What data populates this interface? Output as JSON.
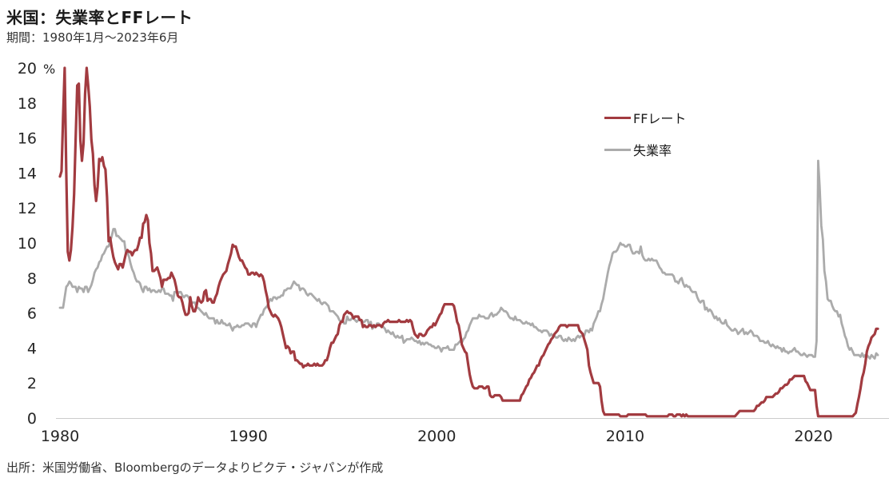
{
  "title": "米国：失業率とFFレート",
  "subtitle": "期間：1980年1月～2023年6月",
  "source": "出所：米国労働省、Bloombergのデータよりピクテ・ジャパンが作成",
  "colors": {
    "ff_rate": "#A23B40",
    "unemployment": "#ABABAB",
    "axis_line": "#CCCCCC",
    "text": "#262626"
  },
  "legend": [
    {
      "label": "FFレート",
      "series_key": "ff_rate"
    },
    {
      "label": "失業率",
      "series_key": "unemployment"
    }
  ],
  "chart_data": {
    "type": "line",
    "x_start": "1980-01",
    "x_end": "2023-06",
    "frequency": "monthly",
    "y_unit": "%",
    "ylim": [
      0,
      20
    ],
    "y_ticks": [
      0,
      2,
      4,
      6,
      8,
      10,
      12,
      14,
      16,
      18,
      20
    ],
    "x_ticks": [
      1980,
      1990,
      2000,
      2010,
      2020
    ],
    "grid": false,
    "legend_position": "inside-top-right",
    "series": [
      {
        "name": "FFレート",
        "color": "#A23B40",
        "values": [
          13.8,
          14.1,
          17.2,
          20.0,
          14.0,
          9.5,
          9.0,
          9.6,
          10.9,
          12.8,
          15.9,
          19.0,
          19.1,
          15.9,
          14.7,
          15.7,
          18.5,
          20.0,
          19.0,
          17.8,
          15.9,
          15.1,
          13.3,
          12.4,
          13.2,
          14.8,
          14.7,
          14.9,
          14.4,
          14.2,
          12.6,
          10.1,
          10.3,
          9.7,
          9.2,
          8.9,
          8.7,
          8.5,
          8.8,
          8.8,
          8.6,
          9.0,
          9.4,
          9.6,
          9.5,
          9.5,
          9.3,
          9.5,
          9.6,
          9.6,
          9.9,
          10.3,
          10.3,
          11.1,
          11.2,
          11.6,
          11.3,
          10.0,
          9.4,
          8.4,
          8.4,
          8.5,
          8.6,
          8.3,
          8.0,
          7.5,
          7.9,
          7.9,
          7.9,
          8.0,
          8.0,
          8.3,
          8.1,
          7.9,
          7.5,
          7.0,
          6.9,
          6.9,
          6.6,
          6.2,
          5.9,
          5.9,
          6.0,
          6.9,
          6.4,
          6.1,
          6.1,
          6.4,
          6.9,
          6.7,
          6.6,
          6.7,
          7.2,
          7.3,
          6.7,
          6.8,
          6.8,
          6.6,
          6.6,
          6.9,
          7.1,
          7.5,
          7.8,
          8.0,
          8.2,
          8.3,
          8.4,
          8.8,
          9.1,
          9.4,
          9.9,
          9.8,
          9.8,
          9.5,
          9.2,
          9.0,
          9.0,
          8.8,
          8.6,
          8.5,
          8.2,
          8.2,
          8.3,
          8.3,
          8.2,
          8.3,
          8.2,
          8.1,
          8.2,
          8.1,
          7.8,
          7.3,
          6.9,
          6.3,
          6.1,
          5.9,
          5.8,
          5.9,
          5.8,
          5.7,
          5.5,
          5.2,
          4.8,
          4.4,
          4.0,
          4.1,
          4.0,
          3.7,
          3.8,
          3.8,
          3.3,
          3.3,
          3.2,
          3.1,
          3.1,
          2.9,
          3.0,
          3.0,
          3.1,
          3.0,
          3.0,
          3.0,
          3.1,
          3.0,
          3.1,
          3.0,
          3.0,
          3.0,
          3.1,
          3.3,
          3.3,
          3.6,
          4.0,
          4.3,
          4.3,
          4.5,
          4.7,
          4.8,
          5.3,
          5.5,
          5.5,
          5.9,
          6.0,
          6.1,
          6.0,
          6.0,
          5.9,
          5.7,
          5.8,
          5.8,
          5.8,
          5.6,
          5.6,
          5.2,
          5.3,
          5.2,
          5.2,
          5.3,
          5.3,
          5.2,
          5.3,
          5.2,
          5.3,
          5.3,
          5.3,
          5.2,
          5.4,
          5.5,
          5.5,
          5.6,
          5.5,
          5.5,
          5.5,
          5.5,
          5.5,
          5.5,
          5.6,
          5.5,
          5.5,
          5.5,
          5.5,
          5.6,
          5.5,
          5.6,
          5.5,
          5.1,
          4.8,
          4.7,
          4.6,
          4.8,
          4.8,
          4.7,
          4.7,
          4.8,
          5.0,
          5.1,
          5.2,
          5.2,
          5.4,
          5.3,
          5.5,
          5.7,
          5.9,
          6.0,
          6.3,
          6.5,
          6.5,
          6.5,
          6.5,
          6.5,
          6.5,
          6.4,
          6.0,
          5.5,
          5.3,
          4.8,
          4.2,
          4.0,
          3.8,
          3.7,
          3.1,
          2.5,
          2.1,
          1.8,
          1.7,
          1.7,
          1.7,
          1.8,
          1.8,
          1.8,
          1.7,
          1.7,
          1.8,
          1.8,
          1.3,
          1.2,
          1.2,
          1.3,
          1.3,
          1.3,
          1.3,
          1.2,
          1.0,
          1.0,
          1.0,
          1.0,
          1.0,
          1.0,
          1.0,
          1.0,
          1.0,
          1.0,
          1.0,
          1.0,
          1.3,
          1.4,
          1.6,
          1.8,
          1.9,
          2.2,
          2.3,
          2.5,
          2.6,
          2.8,
          3.0,
          3.0,
          3.3,
          3.5,
          3.6,
          3.8,
          4.0,
          4.2,
          4.3,
          4.5,
          4.6,
          4.8,
          4.9,
          5.0,
          5.2,
          5.3,
          5.3,
          5.3,
          5.3,
          5.2,
          5.3,
          5.3,
          5.3,
          5.3,
          5.3,
          5.3,
          5.3,
          5.0,
          4.9,
          4.8,
          4.5,
          4.2,
          3.9,
          3.0,
          2.6,
          2.3,
          2.0,
          2.0,
          2.0,
          2.0,
          1.8,
          1.0,
          0.4,
          0.2,
          0.2,
          0.2,
          0.2,
          0.2,
          0.2,
          0.2,
          0.2,
          0.2,
          0.2,
          0.1,
          0.1,
          0.1,
          0.1,
          0.1,
          0.2,
          0.2,
          0.2,
          0.2,
          0.2,
          0.2,
          0.2,
          0.2,
          0.2,
          0.2,
          0.2,
          0.2,
          0.1,
          0.1,
          0.1,
          0.1,
          0.1,
          0.1,
          0.1,
          0.1,
          0.1,
          0.1,
          0.1,
          0.1,
          0.1,
          0.1,
          0.2,
          0.2,
          0.2,
          0.1,
          0.1,
          0.2,
          0.2,
          0.2,
          0.1,
          0.2,
          0.1,
          0.2,
          0.1,
          0.1,
          0.1,
          0.1,
          0.1,
          0.1,
          0.1,
          0.1,
          0.1,
          0.1,
          0.1,
          0.1,
          0.1,
          0.1,
          0.1,
          0.1,
          0.1,
          0.1,
          0.1,
          0.1,
          0.1,
          0.1,
          0.1,
          0.1,
          0.1,
          0.1,
          0.1,
          0.1,
          0.1,
          0.1,
          0.1,
          0.2,
          0.3,
          0.4,
          0.4,
          0.4,
          0.4,
          0.4,
          0.4,
          0.4,
          0.4,
          0.4,
          0.4,
          0.5,
          0.7,
          0.7,
          0.8,
          0.9,
          0.9,
          1.0,
          1.2,
          1.2,
          1.2,
          1.2,
          1.2,
          1.3,
          1.4,
          1.4,
          1.5,
          1.7,
          1.7,
          1.8,
          1.9,
          1.9,
          2.0,
          2.2,
          2.2,
          2.3,
          2.4,
          2.4,
          2.4,
          2.4,
          2.4,
          2.4,
          2.4,
          2.1,
          2.0,
          1.8,
          1.6,
          1.6,
          1.6,
          1.6,
          0.7,
          0.1,
          0.1,
          0.1,
          0.1,
          0.1,
          0.1,
          0.1,
          0.1,
          0.1,
          0.1,
          0.1,
          0.1,
          0.1,
          0.1,
          0.1,
          0.1,
          0.1,
          0.1,
          0.1,
          0.1,
          0.1,
          0.1,
          0.1,
          0.2,
          0.3,
          0.8,
          1.2,
          1.7,
          2.3,
          2.6,
          3.1,
          3.8,
          4.1,
          4.3,
          4.6,
          4.7,
          4.8,
          5.1,
          5.1
        ]
      },
      {
        "name": "失業率",
        "color": "#ABABAB",
        "values": [
          6.3,
          6.3,
          6.3,
          6.9,
          7.5,
          7.6,
          7.8,
          7.7,
          7.5,
          7.5,
          7.5,
          7.2,
          7.5,
          7.4,
          7.4,
          7.2,
          7.5,
          7.5,
          7.2,
          7.4,
          7.6,
          7.9,
          8.3,
          8.5,
          8.6,
          8.9,
          9.0,
          9.3,
          9.4,
          9.6,
          9.8,
          9.8,
          10.1,
          10.4,
          10.8,
          10.8,
          10.4,
          10.4,
          10.3,
          10.2,
          10.1,
          10.1,
          9.4,
          9.5,
          9.2,
          8.8,
          8.5,
          8.3,
          8.0,
          7.8,
          7.8,
          7.7,
          7.4,
          7.2,
          7.5,
          7.5,
          7.3,
          7.4,
          7.2,
          7.3,
          7.3,
          7.2,
          7.2,
          7.3,
          7.2,
          7.4,
          7.4,
          7.1,
          7.1,
          7.1,
          7.0,
          7.0,
          6.7,
          7.2,
          7.2,
          7.1,
          7.2,
          7.2,
          7.0,
          6.9,
          7.0,
          7.0,
          6.9,
          6.6,
          6.6,
          6.6,
          6.6,
          6.3,
          6.3,
          6.2,
          6.1,
          6.0,
          5.9,
          6.0,
          5.8,
          5.7,
          5.7,
          5.7,
          5.7,
          5.4,
          5.6,
          5.4,
          5.4,
          5.6,
          5.4,
          5.4,
          5.3,
          5.3,
          5.4,
          5.2,
          5.0,
          5.2,
          5.2,
          5.3,
          5.2,
          5.2,
          5.3,
          5.3,
          5.4,
          5.4,
          5.4,
          5.3,
          5.2,
          5.4,
          5.4,
          5.2,
          5.5,
          5.7,
          5.9,
          5.9,
          6.2,
          6.3,
          6.4,
          6.6,
          6.8,
          6.7,
          6.9,
          6.9,
          6.8,
          6.9,
          6.9,
          7.0,
          7.0,
          7.3,
          7.3,
          7.4,
          7.4,
          7.4,
          7.6,
          7.8,
          7.7,
          7.6,
          7.6,
          7.3,
          7.4,
          7.4,
          7.3,
          7.1,
          7.0,
          7.1,
          7.1,
          7.0,
          6.9,
          6.8,
          6.7,
          6.8,
          6.6,
          6.5,
          6.6,
          6.6,
          6.5,
          6.4,
          6.1,
          6.1,
          6.1,
          6.0,
          5.9,
          5.8,
          5.6,
          5.5,
          5.6,
          5.4,
          5.4,
          5.8,
          5.6,
          5.6,
          5.7,
          5.7,
          5.6,
          5.5,
          5.6,
          5.6,
          5.6,
          5.5,
          5.5,
          5.6,
          5.6,
          5.3,
          5.5,
          5.1,
          5.2,
          5.2,
          5.4,
          5.4,
          5.3,
          5.2,
          5.2,
          5.1,
          4.9,
          5.0,
          4.9,
          4.8,
          4.9,
          4.7,
          4.6,
          4.7,
          4.6,
          4.6,
          4.7,
          4.3,
          4.4,
          4.5,
          4.5,
          4.5,
          4.6,
          4.5,
          4.4,
          4.4,
          4.3,
          4.4,
          4.2,
          4.3,
          4.2,
          4.3,
          4.3,
          4.2,
          4.2,
          4.1,
          4.1,
          4.0,
          4.0,
          4.1,
          4.0,
          3.8,
          4.0,
          4.0,
          4.0,
          4.1,
          3.9,
          3.9,
          3.9,
          3.9,
          4.2,
          4.2,
          4.3,
          4.4,
          4.3,
          4.5,
          4.6,
          4.9,
          5.0,
          5.3,
          5.5,
          5.7,
          5.7,
          5.7,
          5.7,
          5.9,
          5.8,
          5.8,
          5.8,
          5.7,
          5.7,
          5.7,
          5.9,
          6.0,
          5.8,
          5.9,
          5.9,
          6.0,
          6.1,
          6.3,
          6.2,
          6.1,
          6.1,
          6.0,
          5.8,
          5.7,
          5.7,
          5.6,
          5.8,
          5.6,
          5.6,
          5.6,
          5.5,
          5.4,
          5.4,
          5.5,
          5.4,
          5.4,
          5.3,
          5.4,
          5.2,
          5.2,
          5.1,
          5.0,
          5.0,
          4.9,
          5.0,
          5.0,
          5.0,
          4.9,
          4.7,
          4.8,
          4.7,
          4.7,
          4.6,
          4.6,
          4.7,
          4.7,
          4.5,
          4.4,
          4.5,
          4.4,
          4.6,
          4.5,
          4.4,
          4.5,
          4.4,
          4.6,
          4.7,
          4.6,
          4.7,
          4.7,
          4.7,
          5.0,
          5.0,
          4.9,
          5.1,
          5.0,
          5.4,
          5.6,
          5.8,
          6.1,
          6.1,
          6.5,
          6.8,
          7.3,
          7.8,
          8.3,
          8.7,
          9.0,
          9.4,
          9.5,
          9.5,
          9.6,
          9.8,
          10.0,
          9.9,
          9.9,
          9.8,
          9.8,
          9.9,
          9.9,
          9.6,
          9.4,
          9.4,
          9.5,
          9.5,
          9.4,
          9.8,
          9.3,
          9.1,
          9.0,
          9.0,
          9.1,
          9.0,
          9.1,
          9.0,
          9.0,
          9.0,
          8.8,
          8.6,
          8.5,
          8.3,
          8.3,
          8.2,
          8.2,
          8.2,
          8.2,
          8.2,
          8.1,
          7.8,
          7.8,
          7.7,
          7.9,
          8.0,
          7.7,
          7.5,
          7.6,
          7.5,
          7.5,
          7.3,
          7.2,
          7.2,
          7.2,
          6.9,
          6.7,
          6.6,
          6.7,
          6.7,
          6.2,
          6.3,
          6.1,
          6.2,
          6.1,
          5.9,
          5.7,
          5.8,
          5.6,
          5.7,
          5.5,
          5.4,
          5.4,
          5.6,
          5.3,
          5.2,
          5.1,
          5.0,
          5.0,
          5.1,
          5.0,
          4.8,
          4.9,
          5.0,
          5.1,
          4.8,
          4.9,
          4.8,
          4.9,
          5.0,
          4.9,
          4.7,
          4.7,
          4.7,
          4.6,
          4.4,
          4.4,
          4.4,
          4.3,
          4.3,
          4.4,
          4.2,
          4.1,
          4.2,
          4.1,
          4.0,
          4.1,
          4.0,
          4.0,
          3.8,
          4.0,
          3.8,
          3.8,
          3.7,
          3.8,
          3.8,
          3.9,
          4.0,
          3.8,
          3.8,
          3.7,
          3.6,
          3.6,
          3.7,
          3.6,
          3.5,
          3.6,
          3.6,
          3.6,
          3.5,
          3.5,
          4.4,
          14.7,
          13.2,
          11.0,
          10.2,
          8.4,
          7.8,
          6.8,
          6.7,
          6.7,
          6.4,
          6.2,
          6.1,
          6.1,
          5.8,
          5.9,
          5.4,
          5.1,
          4.7,
          4.5,
          4.1,
          3.9,
          4.0,
          3.8,
          3.6,
          3.6,
          3.6,
          3.6,
          3.5,
          3.7,
          3.5,
          3.6,
          3.6,
          3.5,
          3.4,
          3.6,
          3.5,
          3.4,
          3.7,
          3.6
        ]
      }
    ]
  }
}
